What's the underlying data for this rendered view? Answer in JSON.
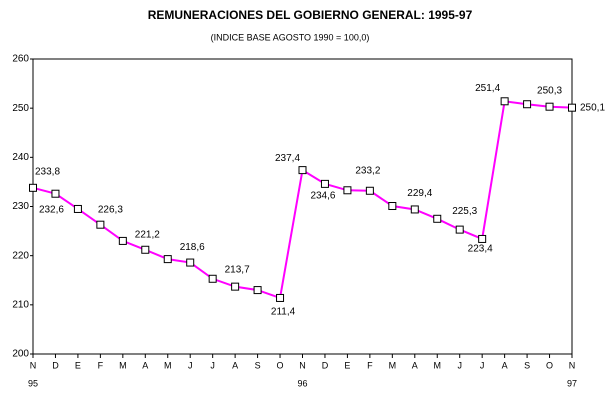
{
  "chart_data": {
    "type": "line",
    "title": "REMUNERACIONES DEL GOBIERNO GENERAL: 1995-97",
    "subtitle": "(INDICE BASE AGOSTO 1990 = 100,0)",
    "categories": [
      "N",
      "D",
      "E",
      "F",
      "M",
      "A",
      "M",
      "J",
      "J",
      "A",
      "S",
      "O",
      "N",
      "D",
      "E",
      "F",
      "M",
      "A",
      "M",
      "J",
      "J",
      "A",
      "S",
      "O",
      "N"
    ],
    "year_labels": [
      "95",
      null,
      null,
      null,
      null,
      null,
      null,
      null,
      null,
      null,
      null,
      null,
      "96",
      null,
      null,
      null,
      null,
      null,
      null,
      null,
      null,
      null,
      null,
      null,
      "97"
    ],
    "values": [
      233.8,
      232.6,
      229.5,
      226.3,
      223.0,
      221.2,
      219.3,
      218.6,
      215.3,
      213.7,
      213.0,
      211.4,
      237.4,
      234.6,
      233.3,
      233.2,
      230.1,
      229.4,
      227.5,
      225.3,
      223.4,
      251.4,
      250.8,
      250.3,
      250.1
    ],
    "value_labels": [
      "233,8",
      "232,6",
      null,
      "226,3",
      null,
      "221,2",
      null,
      "218,6",
      null,
      "213,7",
      null,
      "211,4",
      "237,4",
      "234,6",
      null,
      "233,2",
      null,
      "229,4",
      null,
      "225,3",
      "223,4",
      "251,4",
      null,
      "250,3",
      "250,1"
    ],
    "color": "#ff00ff",
    "ylim": [
      200,
      260
    ],
    "yticks": [
      200,
      210,
      220,
      230,
      240,
      250,
      260
    ],
    "grid": false
  }
}
